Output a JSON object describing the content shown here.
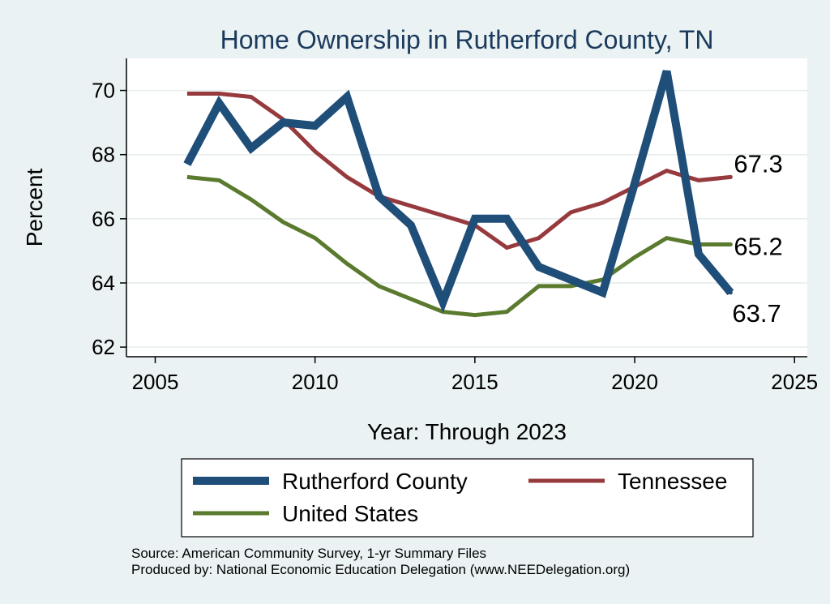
{
  "chart_data": {
    "type": "line",
    "title": "Home Ownership in Rutherford County, TN",
    "xlabel": "Year: Through 2023",
    "ylabel": "Percent",
    "xlim": [
      2004.1,
      2025.4
    ],
    "ylim": [
      61.7,
      71.0
    ],
    "xticks": [
      "2005",
      "2010",
      "2015",
      "2020",
      "2025"
    ],
    "yticks": [
      "62",
      "64",
      "66",
      "68",
      "70"
    ],
    "grid": true,
    "legend_position": "bottom",
    "x": [
      2006,
      2007,
      2008,
      2009,
      2010,
      2011,
      2012,
      2013,
      2014,
      2015,
      2016,
      2017,
      2018,
      2019,
      2020,
      2021,
      2022,
      2023
    ],
    "series": [
      {
        "name": "Rutherford County",
        "color": "#1f4e79",
        "values": [
          67.7,
          69.6,
          68.2,
          69.0,
          68.9,
          69.8,
          66.7,
          65.8,
          63.4,
          66.0,
          66.0,
          64.5,
          64.1,
          63.7,
          67.1,
          70.6,
          64.9,
          63.7
        ],
        "end_label": "63.7"
      },
      {
        "name": "Tennessee",
        "color": "#963a3e",
        "values": [
          69.9,
          69.9,
          69.8,
          69.1,
          68.1,
          67.3,
          66.7,
          66.4,
          66.1,
          65.8,
          65.1,
          65.4,
          66.2,
          66.5,
          67.0,
          67.5,
          67.2,
          67.3
        ],
        "end_label": "67.3"
      },
      {
        "name": "United States",
        "color": "#5a7a2e",
        "values": [
          67.3,
          67.2,
          66.6,
          65.9,
          65.4,
          64.6,
          63.9,
          63.5,
          63.1,
          63.0,
          63.1,
          63.9,
          63.9,
          64.1,
          64.8,
          65.4,
          65.2,
          65.2
        ],
        "end_label": "65.2"
      }
    ],
    "source_lines": [
      "Source: American Community Survey, 1-yr Summary Files",
      "Produced by: National Economic Education Delegation (www.NEEDelegation.org)"
    ]
  }
}
